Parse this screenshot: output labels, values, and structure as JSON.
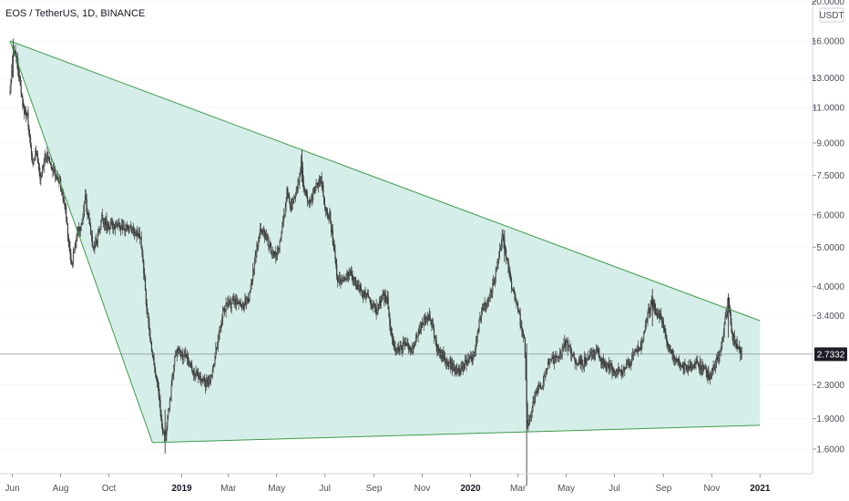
{
  "title": "EOS / TetherUS, 1D, BINANCE",
  "axis": {
    "unit": "USDT",
    "current_price": "2.7332"
  },
  "colors": {
    "pattern_line": "#3f9a4a",
    "pattern_fill": "#d4ede8",
    "candle": "#3a3a3a",
    "price_tag": "#1b1e25",
    "grid": "#e0e3eb"
  },
  "chart_data": {
    "type": "candlestick",
    "symbol": "EOS / TetherUS",
    "interval": "1D",
    "exchange": "BINANCE",
    "yscale": "log",
    "ylim": [
      1.25,
      21
    ],
    "y_ticks": [
      "20.0000",
      "16.0000",
      "13.0000",
      "11.0000",
      "9.0000",
      "7.5000",
      "6.0000",
      "5.0000",
      "4.0000",
      "3.4000",
      "2.3000",
      "1.9000",
      "1.6000"
    ],
    "x_ticks": [
      {
        "label": "Jun",
        "date": "2018-06-01"
      },
      {
        "label": "Aug",
        "date": "2018-08-01"
      },
      {
        "label": "Oct",
        "date": "2018-10-01"
      },
      {
        "label": "2019",
        "date": "2019-01-01"
      },
      {
        "label": "Mar",
        "date": "2019-03-01"
      },
      {
        "label": "May",
        "date": "2019-05-01"
      },
      {
        "label": "Jul",
        "date": "2019-07-01"
      },
      {
        "label": "Sep",
        "date": "2019-09-01"
      },
      {
        "label": "Nov",
        "date": "2019-11-01"
      },
      {
        "label": "2020",
        "date": "2020-01-01"
      },
      {
        "label": "Mar",
        "date": "2020-03-01"
      },
      {
        "label": "May",
        "date": "2020-05-01"
      },
      {
        "label": "Jul",
        "date": "2020-07-01"
      },
      {
        "label": "Sep",
        "date": "2020-09-01"
      },
      {
        "label": "Nov",
        "date": "2020-11-01"
      },
      {
        "label": "2021",
        "date": "2021-01-01"
      }
    ],
    "last_price": 2.7332,
    "pattern": {
      "type": "falling wedge",
      "upper_line": [
        {
          "date": "2018-05-29",
          "price": 16.0
        },
        {
          "date": "2021-01-01",
          "price": 3.3
        }
      ],
      "lower_line": [
        {
          "date": "2018-11-25",
          "price": 1.66
        },
        {
          "date": "2021-01-01",
          "price": 1.83
        }
      ],
      "left_edge": [
        {
          "date": "2018-05-29",
          "price": 16.0
        },
        {
          "date": "2018-11-25",
          "price": 1.66
        }
      ]
    },
    "price_path": [
      [
        "2018-05-29",
        12.0
      ],
      [
        "2018-06-03",
        15.5
      ],
      [
        "2018-06-08",
        13.8
      ],
      [
        "2018-06-14",
        11.0
      ],
      [
        "2018-06-20",
        10.5
      ],
      [
        "2018-06-26",
        8.0
      ],
      [
        "2018-07-02",
        8.6
      ],
      [
        "2018-07-06",
        7.2
      ],
      [
        "2018-07-12",
        8.5
      ],
      [
        "2018-07-18",
        8.2
      ],
      [
        "2018-07-24",
        7.6
      ],
      [
        "2018-07-31",
        7.2
      ],
      [
        "2018-08-07",
        6.2
      ],
      [
        "2018-08-11",
        5.2
      ],
      [
        "2018-08-15",
        4.5
      ],
      [
        "2018-08-21",
        5.4
      ],
      [
        "2018-08-27",
        5.6
      ],
      [
        "2018-09-01",
        6.6
      ],
      [
        "2018-09-05",
        5.9
      ],
      [
        "2018-09-11",
        5.0
      ],
      [
        "2018-09-17",
        5.3
      ],
      [
        "2018-09-22",
        5.9
      ],
      [
        "2018-10-01",
        5.6
      ],
      [
        "2018-10-10",
        5.7
      ],
      [
        "2018-10-20",
        5.5
      ],
      [
        "2018-10-28",
        5.6
      ],
      [
        "2018-11-05",
        5.4
      ],
      [
        "2018-11-10",
        5.2
      ],
      [
        "2018-11-14",
        4.4
      ],
      [
        "2018-11-18",
        3.5
      ],
      [
        "2018-11-22",
        3.0
      ],
      [
        "2018-11-27",
        2.6
      ],
      [
        "2018-12-03",
        2.2
      ],
      [
        "2018-12-07",
        1.8
      ],
      [
        "2018-12-12",
        1.75
      ],
      [
        "2018-12-17",
        2.1
      ],
      [
        "2018-12-22",
        2.6
      ],
      [
        "2018-12-27",
        2.8
      ],
      [
        "2019-01-01",
        2.7
      ],
      [
        "2019-01-07",
        2.7
      ],
      [
        "2019-01-14",
        2.5
      ],
      [
        "2019-01-21",
        2.4
      ],
      [
        "2019-01-28",
        2.35
      ],
      [
        "2019-02-04",
        2.3
      ],
      [
        "2019-02-08",
        2.45
      ],
      [
        "2019-02-15",
        2.9
      ],
      [
        "2019-02-22",
        3.5
      ],
      [
        "2019-02-28",
        3.6
      ],
      [
        "2019-03-10",
        3.7
      ],
      [
        "2019-03-20",
        3.6
      ],
      [
        "2019-03-28",
        3.8
      ],
      [
        "2019-04-03",
        4.6
      ],
      [
        "2019-04-10",
        5.5
      ],
      [
        "2019-04-16",
        5.4
      ],
      [
        "2019-04-24",
        4.9
      ],
      [
        "2019-05-01",
        4.7
      ],
      [
        "2019-05-08",
        5.5
      ],
      [
        "2019-05-14",
        6.8
      ],
      [
        "2019-05-20",
        6.2
      ],
      [
        "2019-05-27",
        7.0
      ],
      [
        "2019-06-01",
        8.0
      ],
      [
        "2019-06-05",
        6.8
      ],
      [
        "2019-06-12",
        6.5
      ],
      [
        "2019-06-18",
        6.9
      ],
      [
        "2019-06-26",
        7.4
      ],
      [
        "2019-07-01",
        6.3
      ],
      [
        "2019-07-07",
        6.0
      ],
      [
        "2019-07-12",
        5.0
      ],
      [
        "2019-07-17",
        4.2
      ],
      [
        "2019-07-24",
        4.2
      ],
      [
        "2019-08-02",
        4.3
      ],
      [
        "2019-08-09",
        4.1
      ],
      [
        "2019-08-16",
        3.9
      ],
      [
        "2019-08-24",
        3.8
      ],
      [
        "2019-08-30",
        3.6
      ],
      [
        "2019-09-05",
        3.5
      ],
      [
        "2019-09-12",
        3.8
      ],
      [
        "2019-09-18",
        3.7
      ],
      [
        "2019-09-24",
        2.9
      ],
      [
        "2019-10-01",
        2.8
      ],
      [
        "2019-10-09",
        2.9
      ],
      [
        "2019-10-18",
        2.8
      ],
      [
        "2019-10-25",
        3.0
      ],
      [
        "2019-11-01",
        3.3
      ],
      [
        "2019-11-08",
        3.4
      ],
      [
        "2019-11-14",
        3.2
      ],
      [
        "2019-11-20",
        2.8
      ],
      [
        "2019-11-28",
        2.7
      ],
      [
        "2019-12-05",
        2.6
      ],
      [
        "2019-12-12",
        2.5
      ],
      [
        "2019-12-18",
        2.45
      ],
      [
        "2019-12-26",
        2.6
      ],
      [
        "2020-01-02",
        2.65
      ],
      [
        "2020-01-08",
        2.9
      ],
      [
        "2020-01-15",
        3.5
      ],
      [
        "2020-01-22",
        3.6
      ],
      [
        "2020-01-28",
        3.9
      ],
      [
        "2020-02-03",
        4.4
      ],
      [
        "2020-02-10",
        5.3
      ],
      [
        "2020-02-15",
        4.8
      ],
      [
        "2020-02-22",
        4.0
      ],
      [
        "2020-02-28",
        3.7
      ],
      [
        "2020-03-05",
        3.2
      ],
      [
        "2020-03-09",
        3.0
      ],
      [
        "2020-03-13",
        1.8
      ],
      [
        "2020-03-18",
        2.0
      ],
      [
        "2020-03-24",
        2.2
      ],
      [
        "2020-04-01",
        2.3
      ],
      [
        "2020-04-08",
        2.6
      ],
      [
        "2020-04-15",
        2.65
      ],
      [
        "2020-04-22",
        2.7
      ],
      [
        "2020-04-29",
        2.9
      ],
      [
        "2020-05-06",
        2.8
      ],
      [
        "2020-05-14",
        2.6
      ],
      [
        "2020-05-22",
        2.6
      ],
      [
        "2020-05-30",
        2.7
      ],
      [
        "2020-06-08",
        2.8
      ],
      [
        "2020-06-16",
        2.6
      ],
      [
        "2020-06-24",
        2.55
      ],
      [
        "2020-07-03",
        2.5
      ],
      [
        "2020-07-12",
        2.5
      ],
      [
        "2020-07-20",
        2.6
      ],
      [
        "2020-07-27",
        2.8
      ],
      [
        "2020-08-03",
        2.85
      ],
      [
        "2020-08-10",
        3.3
      ],
      [
        "2020-08-17",
        3.7
      ],
      [
        "2020-08-22",
        3.5
      ],
      [
        "2020-08-30",
        3.3
      ],
      [
        "2020-09-05",
        2.9
      ],
      [
        "2020-09-12",
        2.7
      ],
      [
        "2020-09-20",
        2.6
      ],
      [
        "2020-09-28",
        2.55
      ],
      [
        "2020-10-06",
        2.55
      ],
      [
        "2020-10-14",
        2.6
      ],
      [
        "2020-10-22",
        2.5
      ],
      [
        "2020-10-30",
        2.4
      ],
      [
        "2020-11-06",
        2.6
      ],
      [
        "2020-11-12",
        2.75
      ],
      [
        "2020-11-18",
        3.3
      ],
      [
        "2020-11-22",
        3.7
      ],
      [
        "2020-11-27",
        3.0
      ],
      [
        "2020-12-02",
        2.9
      ],
      [
        "2020-12-06",
        2.8
      ],
      [
        "2020-12-10",
        2.73
      ]
    ]
  }
}
